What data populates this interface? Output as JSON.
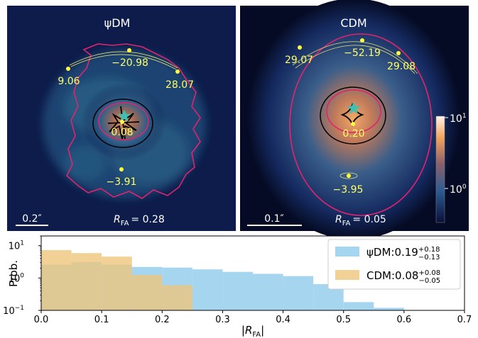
{
  "panels": [
    {
      "title": "ψDM",
      "scale_label": "0.2″",
      "rfa_symbol": "R",
      "rfa_sub": "FA",
      "rfa_value": "= 0.28",
      "annotations": [
        "−20.98",
        "9.06",
        "28.07",
        "0.08",
        "−3.91"
      ]
    },
    {
      "title": "CDM",
      "scale_label": "0.1″",
      "rfa_symbol": "R",
      "rfa_sub": "FA",
      "rfa_value": "= 0.05",
      "annotations": [
        "−52.19",
        "29.07",
        "29.08",
        "0.20",
        "−3.95"
      ]
    }
  ],
  "colorbar": {
    "ticks": [
      {
        "base": "10",
        "exp": "1"
      },
      {
        "base": "10",
        "exp": "0"
      }
    ]
  },
  "chart_data": {
    "type": "histogram",
    "ylabel": "Prob.",
    "xlabel_symbol": "R",
    "xlabel_sub": "FA",
    "xlim": [
      0.0,
      0.7
    ],
    "ylim": [
      0.1,
      20
    ],
    "yscale": "log",
    "x_ticks": [
      "0.0",
      "0.1",
      "0.2",
      "0.3",
      "0.4",
      "0.5",
      "0.6",
      "0.7"
    ],
    "y_ticks": [
      {
        "base": "10",
        "exp": "1"
      },
      {
        "base": "10",
        "exp": "0"
      },
      {
        "base": "10",
        "exp": "−1"
      }
    ],
    "bin_edges": [
      0.0,
      0.05,
      0.1,
      0.15,
      0.2,
      0.25,
      0.3,
      0.35,
      0.4,
      0.45,
      0.5,
      0.55,
      0.6
    ],
    "legend_position": "top-right",
    "series": [
      {
        "name": "ψDM",
        "legend_value": "0.19",
        "legend_sup": "+0.18",
        "legend_sub": "−0.13",
        "color": "#a6d5f0",
        "values": [
          2.6,
          3.1,
          2.6,
          2.2,
          2.1,
          1.85,
          1.55,
          1.35,
          1.15,
          0.65,
          0.18,
          0.12
        ]
      },
      {
        "name": "CDM",
        "legend_value": "0.08",
        "legend_sup": "+0.08",
        "legend_sub": "−0.05",
        "color": "#eec478",
        "values": [
          7.3,
          5.9,
          4.6,
          1.25,
          0.6,
          0.1,
          0.1,
          0.1,
          0.1,
          0.1,
          0.1,
          0.1
        ]
      }
    ]
  }
}
